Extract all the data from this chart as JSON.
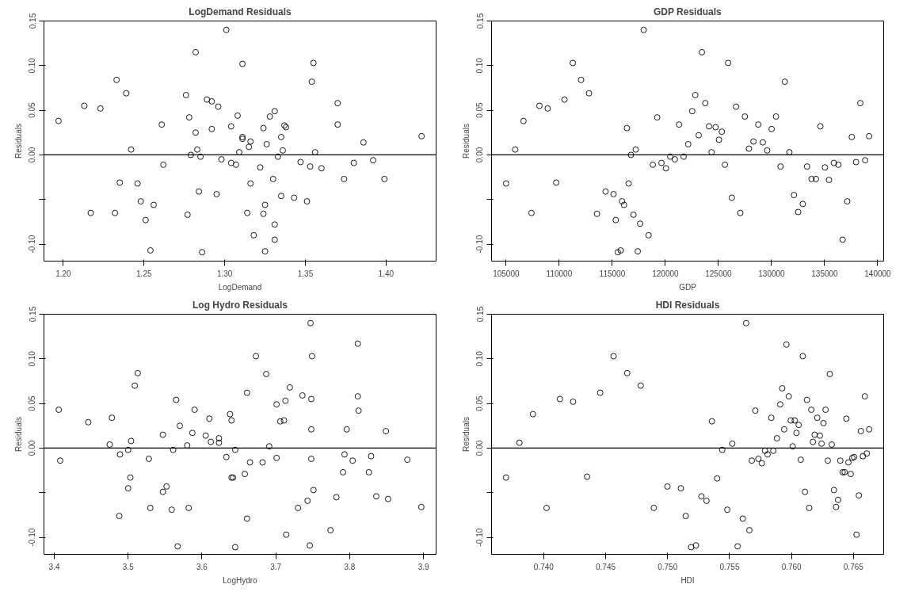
{
  "chart_data": [
    {
      "type": "scatter",
      "title": "LogDemand Residuals",
      "xlabel": "LogDemand",
      "ylabel": "Residuals",
      "marker": "circle",
      "grid": false,
      "xlim": [
        1.188,
        1.431
      ],
      "ylim": [
        -0.119,
        0.15
      ],
      "xticks": [
        {
          "value": 1.2,
          "label": "1.20"
        },
        {
          "value": 1.25,
          "label": "1.25"
        },
        {
          "value": 1.3,
          "label": "1.30"
        },
        {
          "value": 1.35,
          "label": "1.35"
        },
        {
          "value": 1.4,
          "label": "1.40"
        }
      ],
      "yticks": [
        {
          "value": -0.1,
          "label": "-0.10"
        },
        {
          "value": -0.05,
          "label": null
        },
        {
          "value": 0,
          "label": "0.00"
        },
        {
          "value": 0.05,
          "label": "0.05"
        },
        {
          "value": 0.1,
          "label": "0.10"
        },
        {
          "value": 0.15,
          "label": "0.15"
        }
      ],
      "ref_lines": [
        {
          "axis": "y",
          "value": 0,
          "color": "#000000"
        }
      ],
      "series": [
        {
          "color": "#000000",
          "x": [
            1.197,
            1.213,
            1.223,
            1.233,
            1.239,
            1.242,
            1.235,
            1.246,
            1.217,
            1.232,
            1.248,
            1.251,
            1.256,
            1.254,
            1.261,
            1.262,
            1.276,
            1.278,
            1.277,
            1.282,
            1.282,
            1.279,
            1.283,
            1.285,
            1.284,
            1.286,
            1.289,
            1.292,
            1.296,
            1.292,
            1.295,
            1.298,
            1.301,
            1.311,
            1.308,
            1.304,
            1.304,
            1.307,
            1.309,
            1.311,
            1.311,
            1.315,
            1.316,
            1.316,
            1.314,
            1.318,
            1.322,
            1.324,
            1.325,
            1.325,
            1.324,
            1.326,
            1.328,
            1.331,
            1.33,
            1.331,
            1.331,
            1.333,
            1.335,
            1.336,
            1.337,
            1.338,
            1.335,
            1.343,
            1.347,
            1.351,
            1.353,
            1.355,
            1.354,
            1.356,
            1.36,
            1.37,
            1.37,
            1.374,
            1.38,
            1.386,
            1.392,
            1.399,
            1.422
          ],
          "values": [
            0.038,
            0.055,
            0.052,
            0.084,
            0.069,
            0.006,
            -0.031,
            -0.032,
            -0.065,
            -0.065,
            -0.052,
            -0.073,
            -0.056,
            -0.107,
            0.034,
            -0.011,
            0.067,
            0.042,
            -0.067,
            0.115,
            0.025,
            0.0,
            0.006,
            -0.002,
            -0.041,
            -0.109,
            0.062,
            0.06,
            0.054,
            0.029,
            -0.044,
            -0.005,
            0.14,
            0.102,
            0.044,
            0.032,
            -0.009,
            -0.011,
            0.003,
            0.02,
            0.018,
            0.009,
            0.015,
            -0.032,
            -0.065,
            -0.09,
            -0.014,
            -0.066,
            -0.056,
            -0.108,
            0.03,
            0.012,
            0.043,
            0.049,
            -0.027,
            -0.078,
            -0.095,
            -0.002,
            0.02,
            0.005,
            0.033,
            0.031,
            -0.046,
            -0.048,
            -0.008,
            -0.052,
            -0.013,
            0.103,
            0.082,
            0.003,
            -0.015,
            0.058,
            0.034,
            -0.027,
            -0.009,
            0.014,
            -0.006,
            -0.027,
            0.021
          ]
        }
      ]
    },
    {
      "type": "scatter",
      "title": "GDP Residuals",
      "xlabel": "GDP",
      "ylabel": "Residuals",
      "marker": "circle",
      "grid": false,
      "xlim": [
        103630,
        140560
      ],
      "ylim": [
        -0.119,
        0.15
      ],
      "xticks": [
        105000,
        110000,
        115000,
        120000,
        125000,
        130000,
        135000,
        140000
      ],
      "yticks": [
        {
          "value": -0.1,
          "label": "-0.10"
        },
        {
          "value": -0.05,
          "label": null
        },
        {
          "value": 0,
          "label": "0.00"
        },
        {
          "value": 0.05,
          "label": "0.05"
        },
        {
          "value": 0.1,
          "label": "0.10"
        },
        {
          "value": 0.15,
          "label": "0.15"
        }
      ],
      "ref_lines": [
        {
          "axis": "y",
          "value": 0,
          "color": "#000000"
        }
      ],
      "series": [
        {
          "color": "#000000",
          "x": [
            105000,
            105860,
            106640,
            107390,
            108140,
            108920,
            109720,
            110500,
            111280,
            112060,
            112810,
            113560,
            114370,
            115120,
            115330,
            115920,
            116110,
            115520,
            115790,
            116380,
            116540,
            116760,
            117000,
            117210,
            117400,
            117620,
            117960,
            118420,
            118820,
            119230,
            119630,
            120060,
            120460,
            120890,
            121290,
            121720,
            122150,
            122530,
            122820,
            123140,
            123440,
            123760,
            124110,
            124350,
            124730,
            125050,
            125320,
            125610,
            125910,
            126260,
            126660,
            127060,
            127490,
            127870,
            128300,
            128750,
            129180,
            129590,
            130010,
            130420,
            130850,
            131250,
            131680,
            132110,
            132510,
            132940,
            133340,
            133770,
            134180,
            134600,
            135030,
            135410,
            135870,
            136300,
            136700,
            137130,
            137560,
            137960,
            138360,
            138820,
            139190
          ],
          "values": [
            -0.032,
            0.006,
            0.038,
            -0.065,
            0.055,
            0.052,
            -0.031,
            0.062,
            0.103,
            0.084,
            0.069,
            -0.066,
            -0.041,
            -0.044,
            -0.073,
            -0.052,
            -0.056,
            -0.109,
            -0.107,
            0.03,
            -0.032,
            0.0,
            -0.067,
            0.006,
            -0.108,
            -0.077,
            0.14,
            -0.09,
            -0.011,
            0.042,
            -0.009,
            -0.015,
            -0.002,
            -0.005,
            0.034,
            -0.002,
            0.012,
            0.049,
            0.067,
            0.022,
            0.115,
            0.058,
            0.032,
            0.003,
            0.031,
            0.017,
            0.026,
            -0.011,
            0.103,
            -0.048,
            0.054,
            -0.065,
            0.043,
            0.007,
            0.015,
            0.034,
            0.014,
            0.005,
            0.029,
            0.043,
            -0.013,
            0.082,
            0.003,
            -0.045,
            -0.064,
            -0.055,
            -0.013,
            -0.027,
            -0.027,
            0.032,
            -0.014,
            -0.028,
            -0.009,
            -0.011,
            -0.095,
            -0.052,
            0.02,
            -0.008,
            0.058,
            -0.006,
            0.021
          ]
        }
      ]
    },
    {
      "type": "scatter",
      "title": "Log Hydro Residuals",
      "xlabel": "LogHydro",
      "ylabel": "Residuals",
      "marker": "circle",
      "grid": false,
      "xlim": [
        3.386,
        3.917
      ],
      "ylim": [
        -0.119,
        0.15
      ],
      "xticks": [
        3.4,
        3.5,
        3.6,
        3.7,
        3.8,
        3.9
      ],
      "yticks": [
        {
          "value": -0.1,
          "label": "-0.10"
        },
        {
          "value": -0.05,
          "label": null
        },
        {
          "value": 0,
          "label": "0.00"
        },
        {
          "value": 0.05,
          "label": "0.05"
        },
        {
          "value": 0.1,
          "label": "0.10"
        },
        {
          "value": 0.15,
          "label": "0.15"
        }
      ],
      "ref_lines": [
        {
          "axis": "y",
          "value": 0,
          "color": "#000000"
        }
      ],
      "series": [
        {
          "color": "#000000",
          "x": [
            3.406,
            3.408,
            3.446,
            3.478,
            3.475,
            3.489,
            3.488,
            3.5,
            3.504,
            3.503,
            3.5,
            3.509,
            3.513,
            3.528,
            3.53,
            3.547,
            3.547,
            3.552,
            3.559,
            3.561,
            3.565,
            3.567,
            3.57,
            3.58,
            3.582,
            3.587,
            3.59,
            3.605,
            3.61,
            3.612,
            3.623,
            3.623,
            3.633,
            3.638,
            3.64,
            3.64,
            3.642,
            3.645,
            3.645,
            3.658,
            3.661,
            3.661,
            3.665,
            3.673,
            3.682,
            3.687,
            3.691,
            3.701,
            3.701,
            3.706,
            3.711,
            3.713,
            3.714,
            3.719,
            3.73,
            3.736,
            3.743,
            3.746,
            3.747,
            3.749,
            3.748,
            3.748,
            3.748,
            3.751,
            3.774,
            3.782,
            3.791,
            3.793,
            3.796,
            3.804,
            3.811,
            3.811,
            3.812,
            3.826,
            3.829,
            3.836,
            3.849,
            3.852,
            3.878,
            3.897
          ],
          "values": [
            0.043,
            -0.014,
            0.029,
            0.034,
            0.004,
            -0.007,
            -0.076,
            -0.002,
            0.008,
            -0.033,
            -0.045,
            0.07,
            0.084,
            -0.012,
            -0.067,
            0.015,
            -0.049,
            -0.043,
            -0.069,
            -0.002,
            0.054,
            -0.11,
            0.025,
            0.003,
            -0.067,
            0.017,
            0.043,
            0.014,
            0.033,
            0.007,
            0.011,
            0.006,
            -0.01,
            0.038,
            0.031,
            -0.033,
            -0.033,
            -0.002,
            -0.111,
            -0.029,
            0.062,
            -0.079,
            -0.016,
            0.103,
            -0.016,
            0.083,
            0.002,
            0.049,
            -0.011,
            0.03,
            0.031,
            0.053,
            -0.097,
            0.068,
            -0.067,
            0.059,
            -0.059,
            -0.109,
            0.14,
            0.103,
            0.055,
            0.021,
            -0.012,
            -0.047,
            -0.092,
            -0.055,
            -0.027,
            -0.007,
            0.021,
            -0.014,
            0.117,
            0.058,
            0.042,
            -0.027,
            -0.009,
            -0.054,
            0.019,
            -0.057,
            -0.013,
            -0.066
          ]
        }
      ]
    },
    {
      "type": "scatter",
      "title": "HDI Residuals",
      "xlabel": "HDI",
      "ylabel": "Residuals",
      "marker": "circle",
      "grid": false,
      "xlim": [
        0.73579,
        0.76744
      ],
      "ylim": [
        -0.119,
        0.15
      ],
      "xticks": [
        {
          "value": 0.74,
          "label": "0.740"
        },
        {
          "value": 0.745,
          "label": "0.745"
        },
        {
          "value": 0.75,
          "label": "0.750"
        },
        {
          "value": 0.755,
          "label": "0.755"
        },
        {
          "value": 0.76,
          "label": "0.760"
        },
        {
          "value": 0.765,
          "label": "0.765"
        }
      ],
      "yticks": [
        {
          "value": -0.1,
          "label": "-0.10"
        },
        {
          "value": -0.05,
          "label": null
        },
        {
          "value": 0,
          "label": "0.00"
        },
        {
          "value": 0.05,
          "label": "0.05"
        },
        {
          "value": 0.1,
          "label": "0.10"
        },
        {
          "value": 0.15,
          "label": "0.15"
        }
      ],
      "ref_lines": [
        {
          "axis": "y",
          "value": 0,
          "color": "#000000"
        }
      ],
      "series": [
        {
          "color": "#000000",
          "x": [
            0.73696,
            0.73804,
            0.73913,
            0.74023,
            0.74131,
            0.74237,
            0.7435,
            0.74456,
            0.74564,
            0.74674,
            0.74783,
            0.74889,
            0.74999,
            0.75107,
            0.75146,
            0.7519,
            0.75229,
            0.75273,
            0.75314,
            0.75358,
            0.754,
            0.75441,
            0.75482,
            0.75522,
            0.75565,
            0.75607,
            0.75634,
            0.7566,
            0.7568,
            0.75708,
            0.75733,
            0.75761,
            0.75786,
            0.75807,
            0.75837,
            0.75853,
            0.75883,
            0.75909,
            0.75925,
            0.75941,
            0.75959,
            0.75978,
            0.75994,
            0.7601,
            0.76026,
            0.7604,
            0.76058,
            0.76075,
            0.76091,
            0.76109,
            0.76125,
            0.76143,
            0.7616,
            0.76173,
            0.76187,
            0.76208,
            0.76229,
            0.76243,
            0.76258,
            0.76275,
            0.76293,
            0.76309,
            0.76325,
            0.76343,
            0.7636,
            0.76376,
            0.76394,
            0.76413,
            0.76429,
            0.76443,
            0.76459,
            0.76478,
            0.76491,
            0.76505,
            0.76525,
            0.76544,
            0.7656,
            0.76576,
            0.76592,
            0.76608,
            0.76627
          ],
          "values": [
            -0.033,
            0.006,
            0.038,
            -0.067,
            0.055,
            0.052,
            -0.032,
            0.062,
            0.103,
            0.084,
            0.07,
            -0.067,
            -0.043,
            -0.045,
            -0.076,
            -0.111,
            -0.109,
            -0.054,
            -0.059,
            0.03,
            -0.034,
            -0.002,
            -0.069,
            0.005,
            -0.11,
            -0.079,
            0.14,
            -0.092,
            -0.014,
            0.042,
            -0.012,
            -0.017,
            -0.003,
            -0.007,
            0.034,
            -0.003,
            0.011,
            0.049,
            0.067,
            0.021,
            0.116,
            0.058,
            0.031,
            0.002,
            0.031,
            0.017,
            0.026,
            -0.013,
            0.103,
            -0.049,
            0.054,
            -0.067,
            0.043,
            0.007,
            0.015,
            0.034,
            0.014,
            0.005,
            0.028,
            0.043,
            -0.014,
            0.083,
            0.004,
            -0.047,
            -0.066,
            -0.058,
            -0.014,
            -0.027,
            -0.027,
            0.033,
            -0.016,
            -0.029,
            -0.011,
            -0.01,
            -0.097,
            -0.053,
            0.019,
            -0.009,
            0.058,
            -0.006,
            0.021
          ]
        }
      ]
    }
  ]
}
